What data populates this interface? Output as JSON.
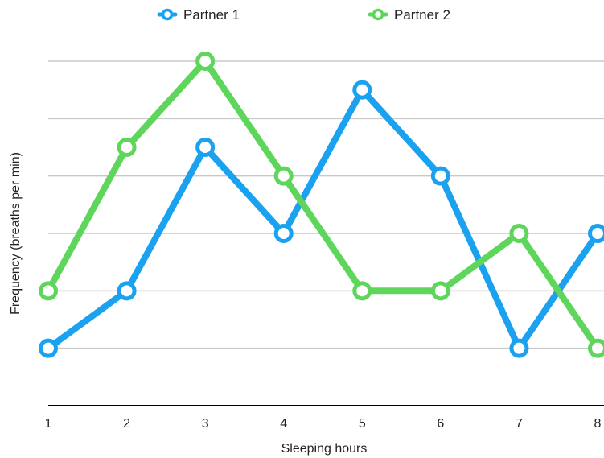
{
  "chart_data": {
    "type": "line",
    "title": "",
    "xlabel": "Sleeping hours",
    "ylabel": "Frequency (breaths per min)",
    "x": [
      1,
      2,
      3,
      4,
      5,
      6,
      7,
      8
    ],
    "x_tick_labels": [
      "1",
      "2",
      "3",
      "4",
      "5",
      "6",
      "7",
      "8"
    ],
    "xlim": [
      1,
      8
    ],
    "ylim": [
      0,
      6
    ],
    "y_tick_labels_shown": false,
    "grid": true,
    "legend_position": "top-center",
    "series": [
      {
        "name": "Partner 1",
        "color": "#1aa1f0",
        "values": [
          1,
          2,
          4.5,
          3,
          5.5,
          4,
          1,
          3
        ]
      },
      {
        "name": "Partner 2",
        "color": "#5ed55b",
        "values": [
          2,
          4.5,
          6,
          4,
          2,
          2,
          3,
          1
        ]
      }
    ]
  },
  "colors": {
    "gridline": "#c8c8c8",
    "axis": "#000000",
    "text": "#222222"
  }
}
